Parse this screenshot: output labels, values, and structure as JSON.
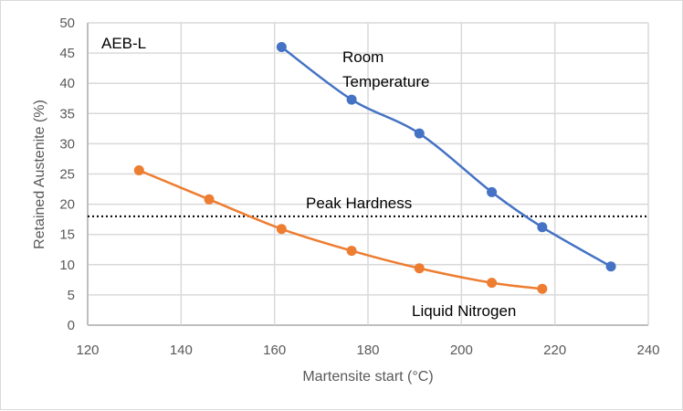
{
  "chart_data": {
    "type": "line",
    "title": "",
    "xlabel": "Martensite start (°C)",
    "ylabel": "Retained Austenite (%)",
    "xlim": [
      120,
      240
    ],
    "ylim": [
      0,
      50
    ],
    "xticks": [
      120,
      140,
      160,
      180,
      200,
      220,
      240
    ],
    "yticks": [
      0,
      5,
      10,
      15,
      20,
      25,
      30,
      35,
      40,
      45,
      50
    ],
    "grid": true,
    "series": [
      {
        "name": "Room Temperature",
        "color": "#4472c4",
        "x": [
          161.5,
          176.5,
          191,
          206.5,
          217.3,
          232
        ],
        "y": [
          46,
          37.3,
          31.7,
          22,
          16.2,
          9.7
        ]
      },
      {
        "name": "Liquid Nitrogen",
        "color": "#ed7d31",
        "x": [
          131,
          146,
          161.5,
          176.5,
          191,
          206.5,
          217.3
        ],
        "y": [
          25.6,
          20.8,
          15.9,
          12.3,
          9.4,
          7,
          6
        ]
      }
    ],
    "reference_line": {
      "label": "Peak Hardness",
      "y": 18
    },
    "annotations": {
      "sample": "AEB-L",
      "room_line1": "Room",
      "room_line2": "Temperature",
      "ln": "Liquid Nitrogen",
      "peak": "Peak Hardness"
    }
  }
}
